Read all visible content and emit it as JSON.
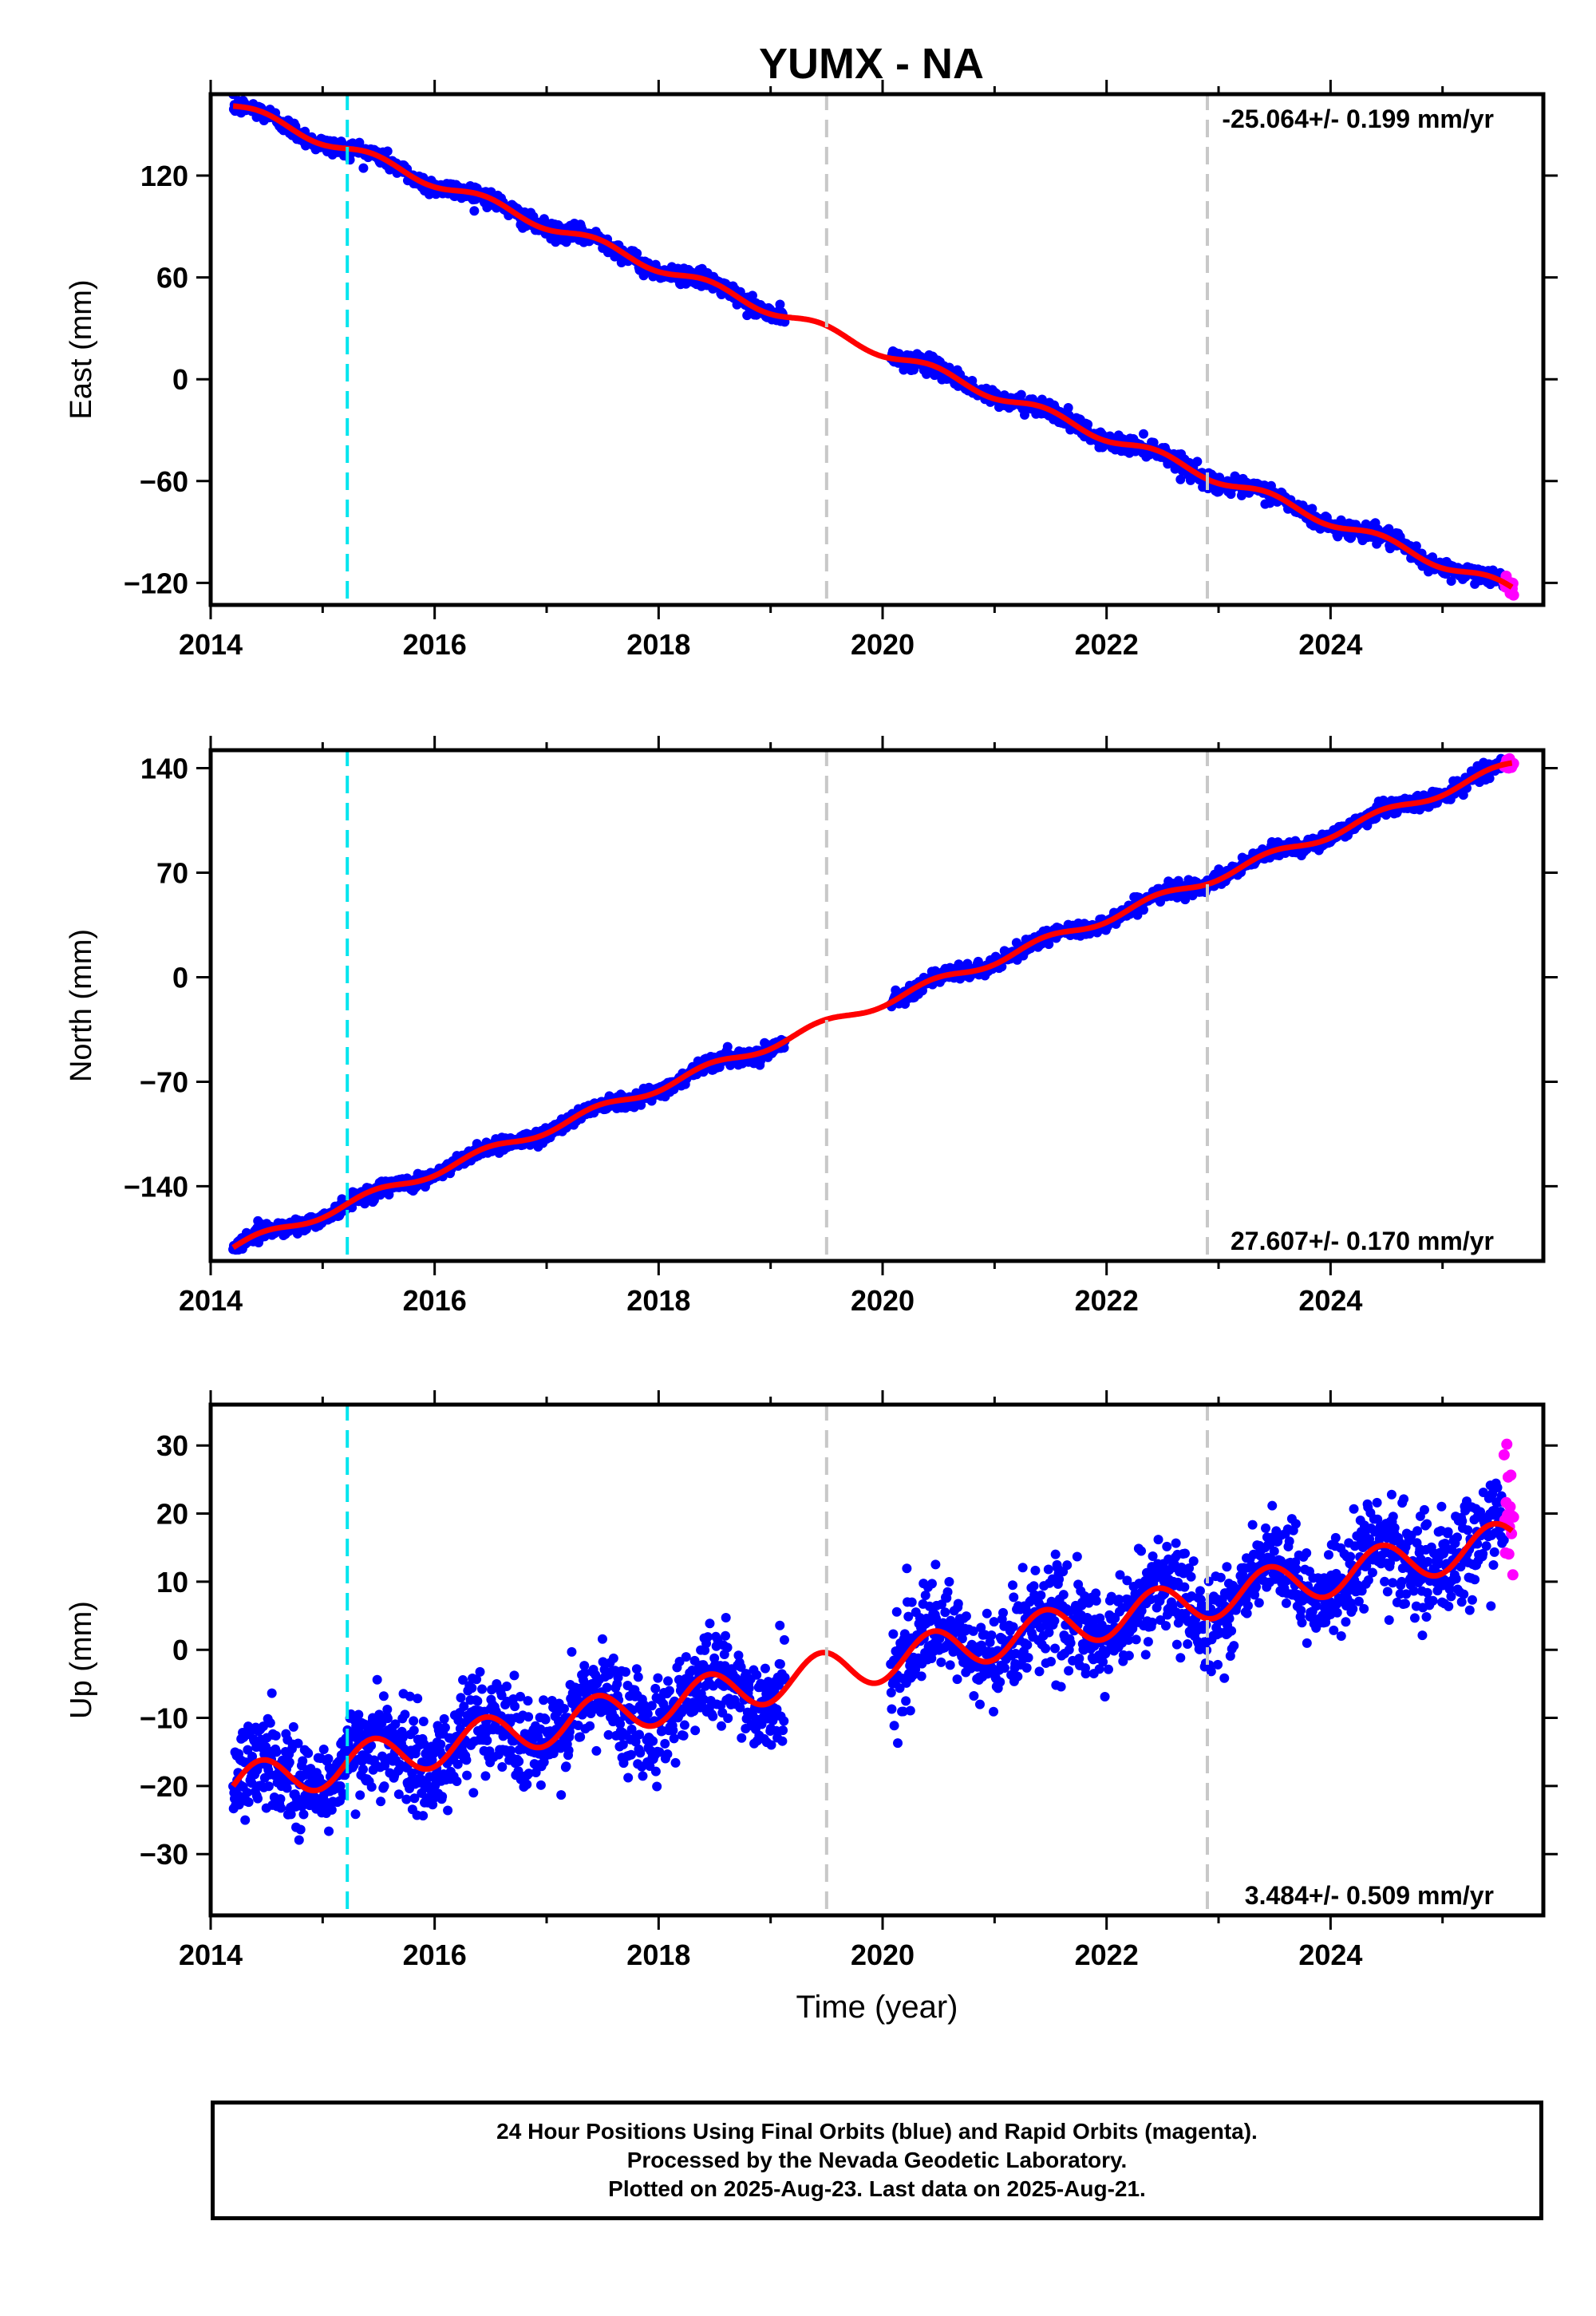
{
  "title": "YUMX - NA",
  "colors": {
    "final_orbits": "#0000ff",
    "rapid_orbits": "#ff00ff",
    "model": "#ff0000",
    "antenna_change": "#00e5ee",
    "equipment_change": "#c8c8c8"
  },
  "footer": {
    "line1": "24 Hour Positions Using Final Orbits (blue) and Rapid Orbits (magenta).",
    "line2": "Processed by the Nevada Geodetic Laboratory.",
    "line3": "Plotted on 2025-Aug-23. Last data on 2025-Aug-21."
  },
  "chart_data": [
    {
      "type": "scatter",
      "ylabel": "East (mm)",
      "xlabel": "",
      "xlim": [
        2014.0,
        2025.9
      ],
      "ylim": [
        -133,
        168
      ],
      "xticks": [
        2014,
        2016,
        2018,
        2020,
        2022,
        2024
      ],
      "yticks": [
        -120,
        -60,
        0,
        60,
        120
      ],
      "rate_label": "-25.064+/- 0.199 mm/yr",
      "rate_position": "top-right",
      "vertical_lines": [
        {
          "x": 2015.22,
          "kind": "antenna_change"
        },
        {
          "x": 2019.5,
          "kind": "equipment_change"
        },
        {
          "x": 2022.9,
          "kind": "equipment_change"
        }
      ],
      "gaps": [
        [
          2019.13,
          2020.07
        ]
      ],
      "model": {
        "start": [
          2014.2,
          161
        ],
        "end": [
          2025.62,
          -124
        ],
        "slope_mm_per_yr": -25.064,
        "seasonal_amp": 3
      },
      "series": [
        {
          "name": "Final Orbits (blue)",
          "x_range": [
            2014.2,
            2025.55
          ],
          "scatter": 2.5
        },
        {
          "name": "Rapid Orbits (magenta)",
          "x_range": [
            2025.55,
            2025.64
          ],
          "scatter": 2
        }
      ]
    },
    {
      "type": "scatter",
      "ylabel": "North (mm)",
      "xlabel": "",
      "xlim": [
        2014.0,
        2025.9
      ],
      "ylim": [
        -190,
        152
      ],
      "xticks": [
        2014,
        2016,
        2018,
        2020,
        2022,
        2024
      ],
      "yticks": [
        -140,
        -70,
        0,
        70,
        140
      ],
      "rate_label": "27.607+/- 0.170 mm/yr",
      "rate_position": "bottom-right",
      "vertical_lines": [
        {
          "x": 2015.22,
          "kind": "antenna_change"
        },
        {
          "x": 2019.5,
          "kind": "equipment_change"
        },
        {
          "x": 2022.9,
          "kind": "equipment_change"
        }
      ],
      "gaps": [
        [
          2019.13,
          2020.07
        ]
      ],
      "model": {
        "start": [
          2014.2,
          -181
        ],
        "end": [
          2025.62,
          142
        ],
        "slope_mm_per_yr": 27.607,
        "seasonal_amp": 3
      },
      "series": [
        {
          "name": "Final Orbits (blue)",
          "x_range": [
            2014.2,
            2025.55
          ],
          "scatter": 2.5
        },
        {
          "name": "Rapid Orbits (magenta)",
          "x_range": [
            2025.55,
            2025.64
          ],
          "scatter": 2
        }
      ]
    },
    {
      "type": "scatter",
      "ylabel": "Up (mm)",
      "xlabel": "Time (year)",
      "xlim": [
        2014.0,
        2025.9
      ],
      "ylim": [
        -39,
        36
      ],
      "xticks": [
        2014,
        2016,
        2018,
        2020,
        2022,
        2024
      ],
      "yticks": [
        -30,
        -20,
        -10,
        0,
        10,
        20,
        30
      ],
      "rate_label": "3.484+/- 0.509 mm/yr",
      "rate_position": "bottom-right",
      "vertical_lines": [
        {
          "x": 2015.22,
          "kind": "antenna_change"
        },
        {
          "x": 2019.5,
          "kind": "equipment_change"
        },
        {
          "x": 2022.9,
          "kind": "equipment_change"
        }
      ],
      "gaps": [
        [
          2019.13,
          2020.07
        ]
      ],
      "model": {
        "start": [
          2014.2,
          -20
        ],
        "end": [
          2025.62,
          16
        ],
        "slope_mm_per_yr": 3.484,
        "seasonal_amp": 3
      },
      "series": [
        {
          "name": "Final Orbits (blue)",
          "x_range": [
            2014.2,
            2025.55
          ],
          "scatter": 3.5
        },
        {
          "name": "Rapid Orbits (magenta)",
          "x_range": [
            2025.55,
            2025.64
          ],
          "values_range": [
            10,
            35
          ]
        }
      ]
    }
  ]
}
